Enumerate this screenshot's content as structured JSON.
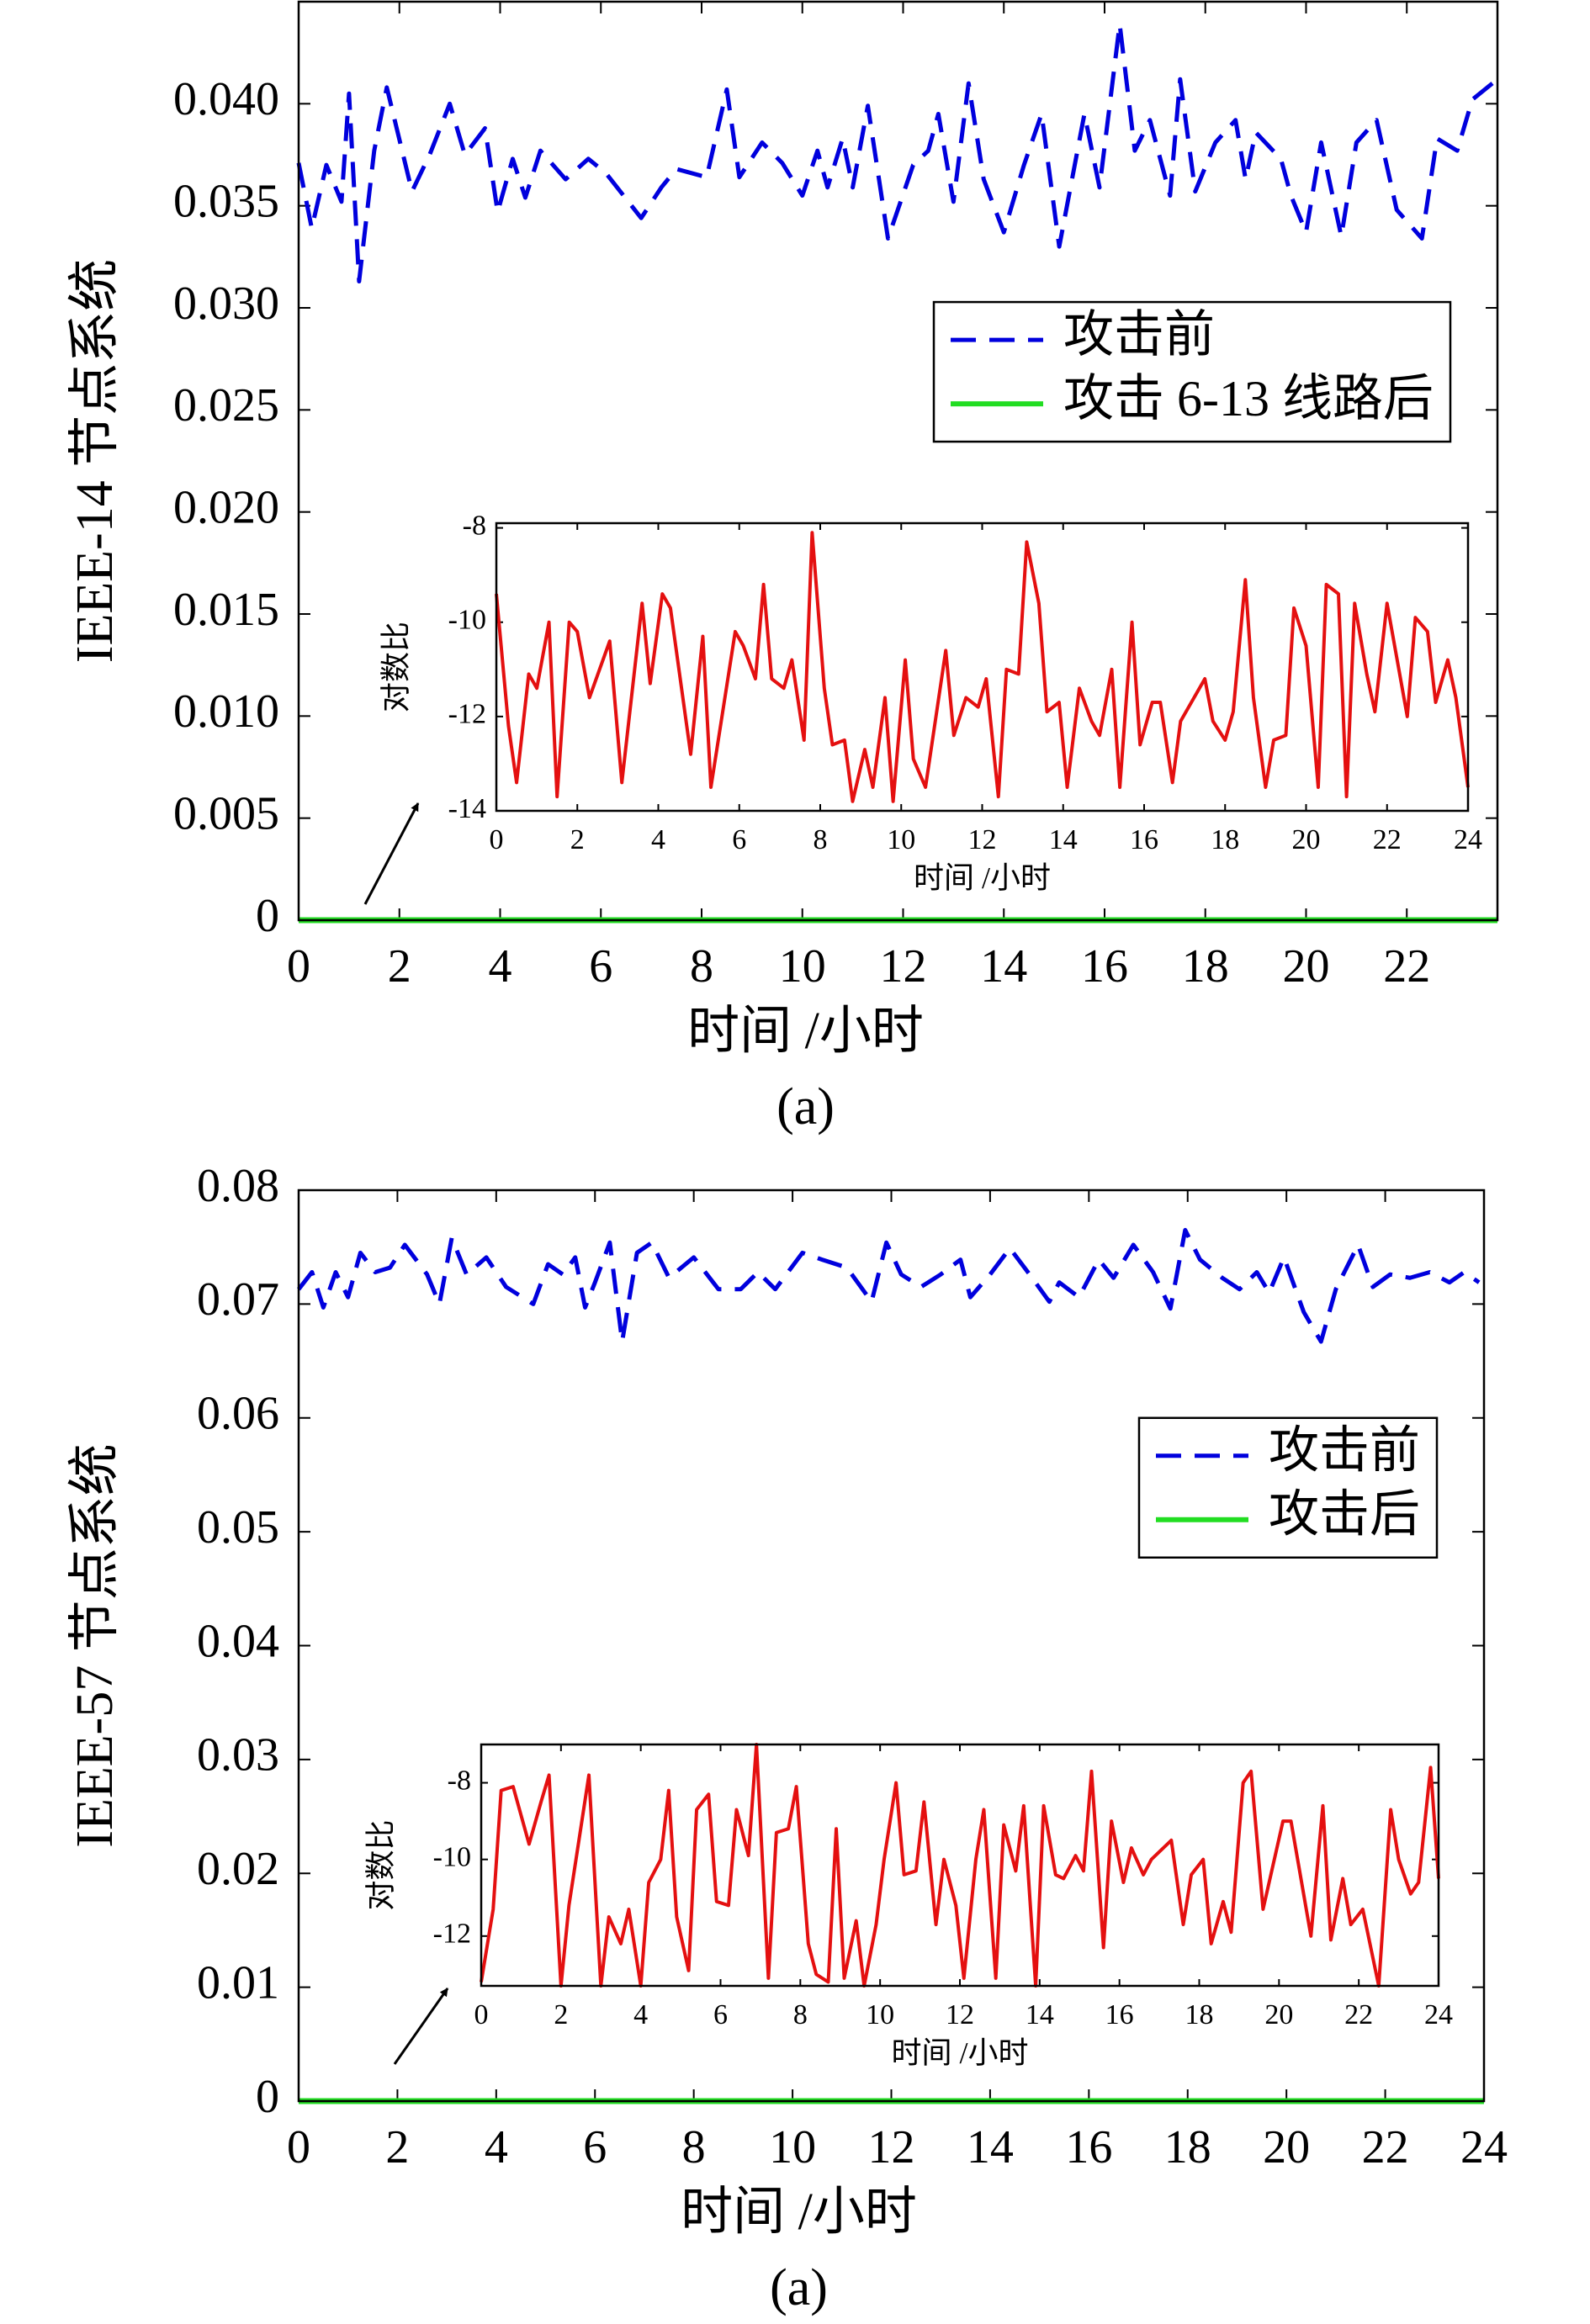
{
  "chart_data": [
    {
      "type": "line",
      "xlabel": "时间 /小时",
      "ylabel": "IEEE-14 节点系统",
      "caption": "(a)",
      "xlim": [
        0,
        23.8
      ],
      "ylim": [
        0,
        0.045
      ],
      "xticks": [
        0,
        2,
        4,
        6,
        8,
        10,
        12,
        14,
        16,
        18,
        20,
        22
      ],
      "yticks": [
        0,
        0.005,
        {
          "value": 0.01,
          "label": "0.010"
        },
        0.015,
        {
          "value": 0.02,
          "label": "0.020"
        },
        0.025,
        {
          "value": 0.03,
          "label": "0.030"
        },
        0.035,
        {
          "value": 0.04,
          "label": "0.040"
        }
      ],
      "legend": "center right",
      "series": [
        {
          "name": "攻击前",
          "color": "#0000dd",
          "style": "dashed",
          "x": [
            0,
            0.26,
            0.55,
            0.85,
            1.0,
            1.2,
            1.5,
            1.75,
            2.25,
            2.6,
            3.0,
            3.3,
            3.7,
            3.95,
            4.25,
            4.5,
            4.8,
            5.3,
            5.75,
            6.1,
            6.8,
            7.2,
            7.5,
            8.1,
            8.5,
            8.75,
            9.2,
            9.6,
            10.0,
            10.3,
            10.5,
            10.8,
            11.0,
            11.3,
            11.7,
            12.2,
            12.5,
            12.7,
            13.0,
            13.3,
            13.6,
            14.0,
            14.4,
            14.75,
            15.1,
            15.6,
            15.9,
            16.3,
            16.6,
            16.9,
            17.3,
            17.5,
            17.8,
            18.2,
            18.6,
            18.8,
            19.0,
            19.5,
            19.7,
            20.0,
            20.3,
            20.7,
            21.0,
            21.4,
            21.8,
            22.3,
            22.6,
            23.0,
            23.3,
            23.7
          ],
          "values": [
            0.0371,
            0.0339,
            0.037,
            0.0352,
            0.0405,
            0.0313,
            0.0377,
            0.0408,
            0.0357,
            0.0375,
            0.04,
            0.0375,
            0.0388,
            0.0347,
            0.0373,
            0.0354,
            0.0377,
            0.0363,
            0.0373,
            0.0366,
            0.0344,
            0.0359,
            0.0368,
            0.0364,
            0.0407,
            0.0364,
            0.0381,
            0.0371,
            0.0355,
            0.0377,
            0.0359,
            0.0383,
            0.0359,
            0.0399,
            0.0334,
            0.037,
            0.0377,
            0.0395,
            0.0352,
            0.041,
            0.0363,
            0.0337,
            0.037,
            0.0395,
            0.033,
            0.0395,
            0.0359,
            0.0439,
            0.0377,
            0.0392,
            0.0355,
            0.0412,
            0.0357,
            0.0381,
            0.0392,
            0.0363,
            0.0386,
            0.0373,
            0.0355,
            0.0337,
            0.0381,
            0.0335,
            0.0381,
            0.0392,
            0.0348,
            0.0334,
            0.0383,
            0.0377,
            0.0402,
            0.041
          ]
        },
        {
          "name": "攻击 6-13 线路后",
          "color": "#22dd22",
          "style": "solid",
          "x": [
            0,
            23.8
          ],
          "values": [
            0,
            0
          ]
        }
      ]
    },
    {
      "type": "line",
      "xlabel": "时间 /小时",
      "ylabel": "对数比",
      "xlim": [
        0,
        24
      ],
      "ylim": [
        -14,
        -7.9
      ],
      "xticks": [
        0,
        2,
        4,
        6,
        8,
        10,
        12,
        14,
        16,
        18,
        20,
        22,
        24
      ],
      "yticks": [
        -14,
        -12,
        -10,
        -8
      ],
      "series": [
        {
          "color": "#e41010",
          "style": "solid",
          "x": [
            0.0,
            0.3,
            0.5,
            0.8,
            1.0,
            1.3,
            1.5,
            1.8,
            2.0,
            2.3,
            2.8,
            3.1,
            3.6,
            3.8,
            4.1,
            4.3,
            4.8,
            5.1,
            5.3,
            5.9,
            6.1,
            6.4,
            6.6,
            6.8,
            7.1,
            7.3,
            7.6,
            7.8,
            8.1,
            8.3,
            8.6,
            8.8,
            9.1,
            9.3,
            9.6,
            9.8,
            10.1,
            10.3,
            10.6,
            11.1,
            11.3,
            11.6,
            11.9,
            12.1,
            12.4,
            12.6,
            12.9,
            13.1,
            13.4,
            13.6,
            13.9,
            14.1,
            14.4,
            14.7,
            14.9,
            15.2,
            15.4,
            15.7,
            15.9,
            16.2,
            16.4,
            16.7,
            16.9,
            17.5,
            17.7,
            18.0,
            18.2,
            18.5,
            18.7,
            19.0,
            19.2,
            19.5,
            19.7,
            20.0,
            20.3,
            20.5,
            20.8,
            21.0,
            21.2,
            21.5,
            21.7,
            22.0,
            22.5,
            22.7,
            23.0,
            23.2,
            23.5,
            23.7,
            24.0
          ],
          "values": [
            -9.4,
            -12.2,
            -13.4,
            -11.1,
            -11.4,
            -10.0,
            -13.7,
            -10.0,
            -10.2,
            -11.6,
            -10.4,
            -13.4,
            -9.6,
            -11.3,
            -9.4,
            -9.7,
            -12.8,
            -10.3,
            -13.5,
            -10.2,
            -10.5,
            -11.2,
            -9.2,
            -11.2,
            -11.4,
            -10.8,
            -12.5,
            -8.1,
            -11.4,
            -12.6,
            -12.5,
            -13.8,
            -12.7,
            -13.5,
            -11.6,
            -13.8,
            -10.8,
            -12.9,
            -13.5,
            -10.6,
            -12.4,
            -11.6,
            -11.8,
            -11.2,
            -13.7,
            -11.0,
            -11.1,
            -8.3,
            -9.6,
            -11.9,
            -11.7,
            -13.5,
            -11.4,
            -12.1,
            -12.4,
            -11.0,
            -13.5,
            -10.0,
            -12.6,
            -11.7,
            -11.7,
            -13.4,
            -12.1,
            -11.2,
            -12.1,
            -12.5,
            -11.9,
            -9.1,
            -11.6,
            -13.5,
            -12.5,
            -12.4,
            -9.7,
            -10.5,
            -13.5,
            -9.2,
            -9.4,
            -13.7,
            -9.6,
            -11.1,
            -11.9,
            -9.6,
            -12.0,
            -9.9,
            -10.2,
            -11.7,
            -10.8,
            -11.6,
            -13.5
          ]
        }
      ]
    },
    {
      "type": "line",
      "xlabel": "时间 /小时",
      "ylabel": "IEEE-57 节点系统",
      "caption": "(a)",
      "xlim": [
        0,
        24
      ],
      "ylim": [
        0,
        0.08
      ],
      "xticks": [
        0,
        2,
        4,
        6,
        8,
        10,
        12,
        14,
        16,
        18,
        20,
        22,
        24
      ],
      "yticks": [
        0,
        0.01,
        0.02,
        0.03,
        0.04,
        0.05,
        0.06,
        0.07,
        0.08
      ],
      "legend": "upper right",
      "series": [
        {
          "name": "攻击前",
          "color": "#0000dd",
          "style": "dashed",
          "x": [
            0,
            0.27,
            0.5,
            0.75,
            1.0,
            1.25,
            1.55,
            1.85,
            2.15,
            2.6,
            2.85,
            3.1,
            3.4,
            3.8,
            4.2,
            4.75,
            5.05,
            5.35,
            5.6,
            5.8,
            6.0,
            6.3,
            6.55,
            6.85,
            7.15,
            7.5,
            8.0,
            8.5,
            8.95,
            9.3,
            9.65,
            10.2,
            10.6,
            11.1,
            11.6,
            11.9,
            12.2,
            12.6,
            13.0,
            13.4,
            13.6,
            14.0,
            14.4,
            14.8,
            15.2,
            15.4,
            15.8,
            16.2,
            16.5,
            16.9,
            17.3,
            17.65,
            17.95,
            18.25,
            18.7,
            19.05,
            19.4,
            19.65,
            19.95,
            20.35,
            20.7,
            21.0,
            21.45,
            21.75,
            22.1,
            22.5,
            22.9,
            23.3,
            23.6,
            23.9
          ],
          "values": [
            0.0713,
            0.0728,
            0.0697,
            0.0728,
            0.0706,
            0.0745,
            0.0728,
            0.0732,
            0.0752,
            0.0726,
            0.07,
            0.0758,
            0.0726,
            0.0741,
            0.0715,
            0.07,
            0.0735,
            0.0726,
            0.0741,
            0.0697,
            0.0719,
            0.0754,
            0.0667,
            0.0745,
            0.0754,
            0.0723,
            0.0741,
            0.0713,
            0.0713,
            0.0728,
            0.0713,
            0.0745,
            0.0739,
            0.0732,
            0.0702,
            0.0754,
            0.0726,
            0.0715,
            0.0726,
            0.0739,
            0.0706,
            0.0726,
            0.0749,
            0.0726,
            0.0702,
            0.0719,
            0.0706,
            0.0739,
            0.0723,
            0.0752,
            0.0728,
            0.0696,
            0.0765,
            0.0739,
            0.0723,
            0.0713,
            0.0728,
            0.071,
            0.0741,
            0.0693,
            0.0667,
            0.0713,
            0.0752,
            0.0715,
            0.0726,
            0.0723,
            0.0728,
            0.0719,
            0.0728,
            0.0719
          ]
        },
        {
          "name": "攻击后",
          "color": "#22dd22",
          "style": "solid",
          "x": [
            0,
            24
          ],
          "values": [
            0,
            0
          ]
        }
      ]
    },
    {
      "type": "line",
      "xlabel": "时间 /小时",
      "ylabel": "对数比",
      "xlim": [
        0,
        24
      ],
      "ylim": [
        -13.3,
        -7
      ],
      "xticks": [
        0,
        2,
        4,
        6,
        8,
        10,
        12,
        14,
        16,
        18,
        20,
        22,
        24
      ],
      "yticks": [
        -12,
        -10,
        -8
      ],
      "series": [
        {
          "color": "#e41010",
          "style": "solid",
          "x": [
            0.0,
            0.3,
            0.5,
            0.8,
            1.2,
            1.5,
            1.7,
            2.0,
            2.2,
            2.7,
            3.0,
            3.2,
            3.5,
            3.7,
            4.0,
            4.2,
            4.5,
            4.7,
            4.9,
            5.2,
            5.4,
            5.7,
            5.9,
            6.2,
            6.4,
            6.7,
            6.9,
            7.2,
            7.4,
            7.7,
            7.9,
            8.2,
            8.4,
            8.7,
            8.9,
            9.1,
            9.4,
            9.6,
            9.9,
            10.1,
            10.4,
            10.6,
            10.9,
            11.1,
            11.4,
            11.6,
            11.9,
            12.1,
            12.4,
            12.6,
            12.9,
            13.1,
            13.4,
            13.6,
            13.9,
            14.1,
            14.4,
            14.6,
            14.9,
            15.1,
            15.3,
            15.6,
            15.8,
            16.1,
            16.3,
            16.6,
            16.8,
            17.3,
            17.6,
            17.8,
            18.1,
            18.3,
            18.6,
            18.8,
            19.1,
            19.3,
            19.6,
            20.1,
            20.3,
            20.8,
            21.1,
            21.3,
            21.6,
            21.8,
            22.1,
            22.5,
            22.8,
            23.0,
            23.3,
            23.5,
            23.8,
            24.0
          ],
          "values": [
            -13.2,
            -11.3,
            -8.2,
            -8.1,
            -9.6,
            -8.5,
            -7.8,
            -13.3,
            -11.2,
            -7.8,
            -13.3,
            -11.5,
            -12.2,
            -11.3,
            -13.3,
            -10.6,
            -10.0,
            -8.2,
            -11.5,
            -12.9,
            -8.7,
            -8.3,
            -11.1,
            -11.2,
            -8.7,
            -9.9,
            -7.0,
            -13.1,
            -9.3,
            -9.2,
            -8.1,
            -12.2,
            -13.0,
            -13.2,
            -9.2,
            -13.1,
            -11.6,
            -13.3,
            -11.7,
            -10.0,
            -8.0,
            -10.4,
            -10.3,
            -8.5,
            -11.7,
            -10.0,
            -11.2,
            -13.1,
            -10.0,
            -8.7,
            -13.1,
            -9.1,
            -10.3,
            -8.6,
            -13.3,
            -8.6,
            -10.4,
            -10.5,
            -9.9,
            -10.3,
            -7.7,
            -12.3,
            -9.0,
            -10.6,
            -9.7,
            -10.4,
            -10.0,
            -9.5,
            -11.7,
            -10.4,
            -10.0,
            -12.2,
            -11.1,
            -11.9,
            -8.0,
            -7.7,
            -11.3,
            -9.0,
            -9.0,
            -12.0,
            -8.6,
            -12.1,
            -10.5,
            -11.7,
            -11.3,
            -13.3,
            -8.7,
            -10.0,
            -10.9,
            -10.6,
            -7.6,
            -10.5
          ]
        }
      ]
    }
  ]
}
